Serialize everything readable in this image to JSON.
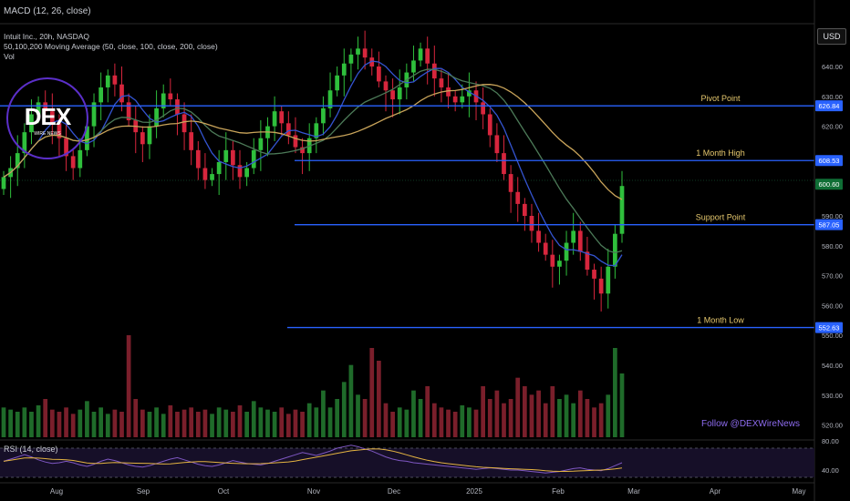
{
  "header": {
    "macd_label": "MACD (12, 26, close)",
    "symbol_line": "Intuit Inc., 20h, NASDAQ",
    "ma_line": "50,100,200 Moving Average (50, close, 100, close, 200, close)",
    "vol_label": "Vol",
    "rsi_label": "RSI (14, close)"
  },
  "watermark": {
    "logo_text": "DEX",
    "logo_sub": "WIRE NEWS",
    "follow": "Follow @DEXWireNews"
  },
  "currency": "USD",
  "colors": {
    "up": "#2fbf3c",
    "down": "#d7263d",
    "level_line": "#2962ff",
    "level_label": "#e6c86e",
    "ma50": "#3454d1",
    "ma100": "#4c7a58",
    "ma200": "#c9a45a",
    "rsi": "#7e57c2",
    "rsi_ma": "#e3b341"
  },
  "chart_data": {
    "type": "candlestick",
    "symbol": "Intuit Inc.",
    "timeframe": "20h",
    "exchange": "NASDAQ",
    "price_axis": {
      "ticks": [
        520,
        530,
        540,
        550,
        560,
        570,
        580,
        590,
        600,
        610,
        620,
        630,
        640
      ],
      "tick_labels": [
        "520.00",
        "530.00",
        "540.00",
        "550.00",
        "560.00",
        "570.00",
        "580.00",
        "590.00",
        "600.00",
        "610.00",
        "620.00",
        "630.00",
        "640.00"
      ]
    },
    "time_axis": {
      "labels": [
        "Aug",
        "Sep",
        "Oct",
        "Nov",
        "Dec",
        "2025",
        "Feb",
        "Mar",
        "Apr",
        "May"
      ]
    },
    "levels": [
      {
        "name": "Pivot Point",
        "value": 626.84,
        "tag": "626.84"
      },
      {
        "name": "1 Month High",
        "value": 608.53,
        "tag": "608.53"
      },
      {
        "name": "Support Point",
        "value": 587.05,
        "tag": "587.05"
      },
      {
        "name": "1 Month Low",
        "value": 552.63,
        "tag": "552.63"
      }
    ],
    "current_price": {
      "value": 600.6,
      "tag": "600.60"
    },
    "closes": [
      603,
      606,
      611,
      618,
      624,
      628,
      625,
      621,
      616,
      610,
      606,
      612,
      620,
      628,
      633,
      637,
      634,
      628,
      622,
      618,
      614,
      620,
      626,
      631,
      629,
      624,
      618,
      612,
      606,
      602,
      604,
      608,
      612,
      607,
      603,
      606,
      612,
      616,
      620,
      625,
      621,
      617,
      613,
      611,
      616,
      621,
      626,
      632,
      637,
      641,
      644,
      646,
      643,
      640,
      635,
      632,
      629,
      633,
      638,
      642,
      646,
      641,
      636,
      633,
      630,
      628,
      630,
      632,
      628,
      624,
      617,
      611,
      604,
      598,
      594,
      590,
      585,
      581,
      577,
      573,
      575,
      581,
      585,
      578,
      572,
      569,
      564,
      573,
      584,
      600
    ],
    "volume": [
      14,
      13,
      12,
      14,
      12,
      15,
      18,
      13,
      12,
      14,
      11,
      13,
      17,
      12,
      14,
      11,
      13,
      12,
      48,
      18,
      13,
      12,
      14,
      11,
      15,
      12,
      13,
      14,
      12,
      13,
      11,
      14,
      13,
      12,
      15,
      12,
      17,
      14,
      13,
      12,
      14,
      11,
      13,
      12,
      16,
      14,
      22,
      14,
      18,
      26,
      34,
      20,
      18,
      42,
      36,
      16,
      12,
      14,
      13,
      22,
      18,
      24,
      16,
      14,
      13,
      12,
      15,
      14,
      13,
      24,
      18,
      22,
      16,
      18,
      28,
      24,
      20,
      22,
      16,
      24,
      18,
      20,
      16,
      22,
      18,
      14,
      16,
      20,
      42,
      30
    ],
    "rsi": {
      "axis_ticks": [
        40,
        80
      ],
      "axis_labels": [
        "40.00",
        "80.00"
      ],
      "values": [
        52,
        55,
        58,
        61,
        58,
        54,
        51,
        49,
        50,
        52,
        50,
        47,
        45,
        48,
        52,
        55,
        53,
        50,
        47,
        45,
        44,
        46,
        49,
        52,
        55,
        57,
        54,
        51,
        48,
        46,
        45,
        47,
        50,
        53,
        51,
        49,
        48,
        47,
        49,
        52,
        55,
        58,
        61,
        64,
        62,
        60,
        63,
        66,
        70,
        72,
        74,
        72,
        69,
        66,
        62,
        58,
        55,
        53,
        52,
        50,
        49,
        48,
        47,
        46,
        45,
        44,
        43,
        42,
        41,
        42,
        43,
        42,
        41,
        40,
        40,
        39,
        38,
        37,
        36,
        37,
        38,
        40,
        42,
        43,
        41,
        40,
        39,
        42,
        46,
        50
      ]
    }
  }
}
